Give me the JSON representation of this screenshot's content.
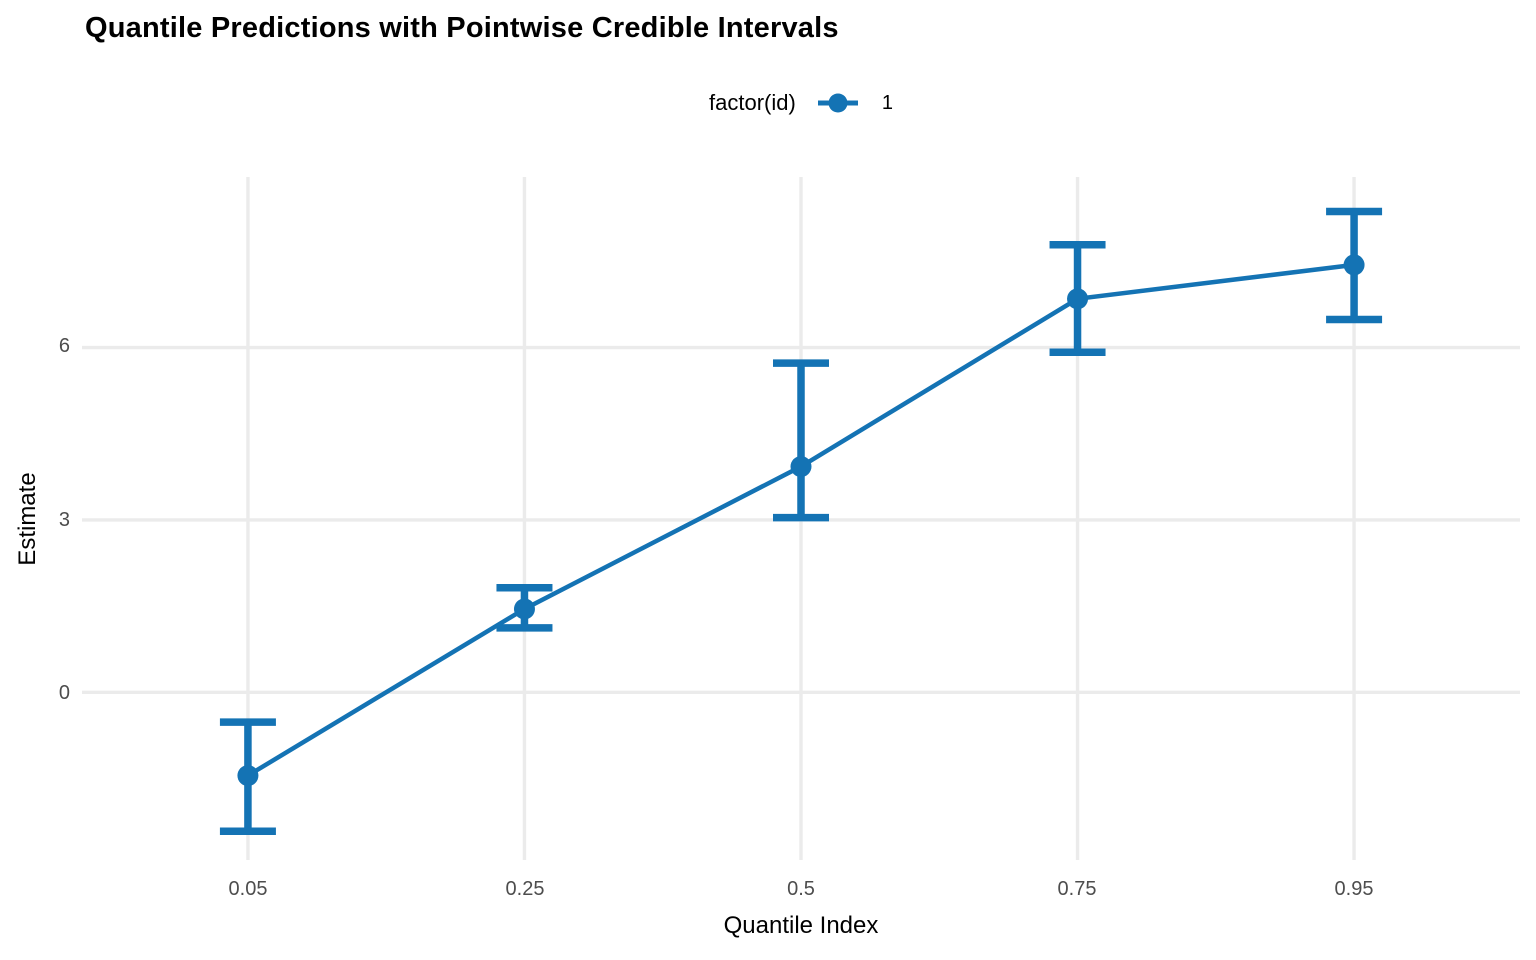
{
  "colors": {
    "accent_blue": "#1473b4",
    "gridline": "#ebebeb",
    "tick_label": "#4d4d4d",
    "text": "#000000",
    "background": "#ffffff"
  },
  "chart_data": {
    "type": "line",
    "subtype": "pointrange-errorbar",
    "title": "Quantile Predictions with Pointwise Credible Intervals",
    "xlabel": "Quantile Index",
    "ylabel": "Estimate",
    "legend_title": "factor(id)",
    "legend_position": "top",
    "grid": true,
    "x": [
      0.05,
      0.25,
      0.5,
      0.75,
      0.95
    ],
    "x_tick_labels": [
      "0.05",
      "0.25",
      "0.5",
      "0.75",
      "0.95"
    ],
    "x_spacing": "equal",
    "y_ticks": [
      0,
      3,
      6
    ],
    "y_tick_labels": [
      "0",
      "3",
      "6"
    ],
    "ylim": [
      -2.92,
      8.97
    ],
    "series": [
      {
        "name": "1",
        "estimates": [
          -1.45,
          1.45,
          3.93,
          6.85,
          7.44
        ],
        "lower": [
          -2.42,
          1.12,
          3.04,
          5.92,
          6.49
        ],
        "upper": [
          -0.52,
          1.82,
          5.73,
          7.79,
          8.37
        ],
        "color": "#1473b4"
      }
    ]
  }
}
